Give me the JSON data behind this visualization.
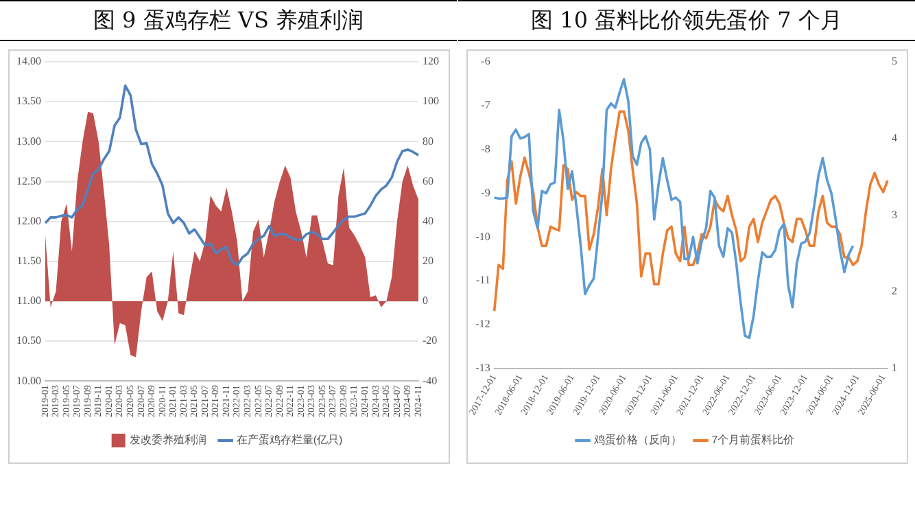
{
  "chart_data": [
    {
      "type": "line",
      "title": "图 9 蛋鸡存栏 VS 养殖利润",
      "categories": [
        "2019-01",
        null,
        "2019-03",
        null,
        "2019-05",
        null,
        "2019-07",
        null,
        "2019-09",
        null,
        "2019-11",
        null,
        "2020-01",
        null,
        "2020-03",
        null,
        "2020-05",
        null,
        "2020-07",
        null,
        "2020-09",
        null,
        "2020-11",
        null,
        "2021-01",
        null,
        "2021-03",
        null,
        "2021-05",
        null,
        "2021-07",
        null,
        "2021-09",
        null,
        "2021-11",
        null,
        "2022-01",
        null,
        "2022-03",
        null,
        "2022-05",
        null,
        "2022-07",
        null,
        "2022-09",
        null,
        "2022-11",
        null,
        "2023-01",
        null,
        "2023-03",
        null,
        "2023-05",
        null,
        "2023-07",
        null,
        "2023-09",
        null,
        "2023-11",
        null,
        "2024-01",
        null,
        "2024-03",
        null,
        "2024-05",
        null,
        "2024-07",
        null,
        "2024-09",
        null,
        "2024-11"
      ],
      "series": [
        {
          "name": "发改委养殖利润",
          "type": "area",
          "axis": "y2",
          "color": "#c0504d",
          "values": [
            33,
            -3,
            5,
            40,
            49,
            25,
            60,
            80,
            95,
            94,
            80,
            55,
            28,
            -22,
            -11,
            -12,
            -27,
            -28,
            -5,
            12,
            15,
            -5,
            -10,
            0,
            25,
            -6,
            -7,
            10,
            25,
            20,
            30,
            53,
            48,
            45,
            57,
            45,
            30,
            0,
            5,
            35,
            41,
            22,
            35,
            50,
            60,
            68,
            62,
            45,
            35,
            22,
            43,
            43,
            30,
            19,
            18,
            53,
            67,
            37,
            33,
            28,
            22,
            2,
            3,
            -3,
            0,
            12,
            40,
            60,
            68,
            58,
            51
          ]
        },
        {
          "name": "在产蛋鸡存栏量(亿只)",
          "type": "line",
          "color": "#4f81bd",
          "values": [
            11.98,
            12.05,
            12.05,
            12.07,
            12.08,
            12.05,
            12.15,
            12.2,
            12.4,
            12.6,
            12.65,
            12.78,
            12.88,
            13.2,
            13.3,
            13.7,
            13.58,
            13.15,
            12.97,
            12.98,
            12.72,
            12.6,
            12.45,
            12.1,
            11.98,
            12.05,
            11.98,
            11.85,
            11.9,
            11.8,
            11.7,
            11.72,
            11.6,
            11.65,
            11.68,
            11.5,
            11.45,
            11.55,
            11.6,
            11.72,
            11.78,
            11.82,
            11.94,
            11.82,
            11.84,
            11.84,
            11.8,
            11.77,
            11.77,
            11.84,
            11.87,
            11.84,
            11.78,
            11.78,
            11.86,
            11.95,
            12.02,
            12.06,
            12.06,
            12.08,
            12.1,
            12.2,
            12.32,
            12.4,
            12.45,
            12.55,
            12.75,
            12.88,
            12.9,
            12.87,
            12.83
          ]
        }
      ],
      "ylim": [
        10,
        14
      ],
      "yticks": [
        {
          "value": 10,
          "label": "10.00"
        },
        {
          "value": 10.5,
          "label": "10.50"
        },
        {
          "value": 11,
          "label": "11.00"
        },
        {
          "value": 11.5,
          "label": "11.50"
        },
        {
          "value": 12,
          "label": "12.00"
        },
        {
          "value": 12.5,
          "label": "12.50"
        },
        {
          "value": 13,
          "label": "13.00"
        },
        {
          "value": 13.5,
          "label": "13.50"
        },
        {
          "value": 14,
          "label": "14.00"
        }
      ],
      "y2lim": [
        -40,
        120
      ],
      "y2ticks": [
        -40,
        -20,
        0,
        20,
        40,
        60,
        80,
        100,
        120
      ],
      "grid": "y",
      "legend": "bottom",
      "marker": "none"
    },
    {
      "type": "line",
      "title": "图 10 蛋料比价领先蛋价 7 个月",
      "categories": [
        "2017-12-01",
        null,
        null,
        null,
        null,
        null,
        "2018-06-01",
        null,
        null,
        null,
        null,
        null,
        "2018-12-01",
        null,
        null,
        null,
        null,
        null,
        "2019-06-01",
        null,
        null,
        null,
        null,
        null,
        "2019-12-01",
        null,
        null,
        null,
        null,
        null,
        "2020-06-01",
        null,
        null,
        null,
        null,
        null,
        "2020-12-01",
        null,
        null,
        null,
        null,
        null,
        "2021-06-01",
        null,
        null,
        null,
        null,
        null,
        "2021-12-01",
        null,
        null,
        null,
        null,
        null,
        "2022-06-01",
        null,
        null,
        null,
        null,
        null,
        "2022-12-01",
        null,
        null,
        null,
        null,
        null,
        "2023-06-01",
        null,
        null,
        null,
        null,
        null,
        "2023-12-01",
        null,
        null,
        null,
        null,
        null,
        "2024-06-01",
        null,
        null,
        null,
        null,
        null,
        "2024-12-01",
        null,
        null,
        null,
        null,
        null,
        "2025-06-01",
        null
      ],
      "series": [
        {
          "name": "鸡蛋价格（反向）",
          "type": "line",
          "color": "#5b9bd5",
          "values": [
            -9.1,
            -9.12,
            -9.12,
            -9.1,
            -7.7,
            -7.55,
            -7.75,
            -7.72,
            -7.65,
            -9.4,
            -9.8,
            -8.95,
            -9.0,
            -8.8,
            -8.75,
            -7.1,
            -7.8,
            -8.9,
            -8.5,
            -9.3,
            -10.2,
            -11.3,
            -11.1,
            -10.95,
            -10.0,
            -9.0,
            -7.1,
            -6.95,
            -7.05,
            -6.7,
            -6.4,
            -6.9,
            -8.15,
            -8.35,
            -7.85,
            -7.7,
            -8.0,
            -9.6,
            -8.8,
            -8.2,
            -8.7,
            -9.15,
            -9.1,
            -9.2,
            -10.5,
            -10.5,
            -10.0,
            -10.6,
            -10.1,
            -9.8,
            -8.95,
            -9.1,
            -10.2,
            -10.45,
            -9.8,
            -9.9,
            -10.6,
            -11.5,
            -12.25,
            -12.3,
            -11.8,
            -11.0,
            -10.35,
            -10.45,
            -10.45,
            -10.3,
            -9.85,
            -9.7,
            -11.1,
            -11.6,
            -10.6,
            -10.15,
            -10.1,
            -9.9,
            -9.3,
            -8.6,
            -8.2,
            -8.7,
            -9.0,
            -9.6,
            -10.3,
            -10.8,
            -10.4,
            -10.2,
            null,
            null,
            null,
            null,
            null,
            null,
            null,
            null
          ]
        },
        {
          "name": "7个月前蛋料比价",
          "type": "line",
          "axis": "y2",
          "color": "#ed7d31",
          "values": [
            1.75,
            2.35,
            2.3,
            3.45,
            3.7,
            3.15,
            3.5,
            3.75,
            3.55,
            3.3,
            2.85,
            2.6,
            2.6,
            2.85,
            2.82,
            2.8,
            3.65,
            3.6,
            3.2,
            3.3,
            3.25,
            3.25,
            2.55,
            2.75,
            3.1,
            3.6,
            3.0,
            3.6,
            4.0,
            4.35,
            4.35,
            4.1,
            3.6,
            3.15,
            2.2,
            2.5,
            2.5,
            2.1,
            2.1,
            2.5,
            2.8,
            2.85,
            2.5,
            2.4,
            2.85,
            2.35,
            2.35,
            2.5,
            2.75,
            2.7,
            2.85,
            3.2,
            3.1,
            3.05,
            3.25,
            3.0,
            2.8,
            2.4,
            2.45,
            2.85,
            2.95,
            2.65,
            2.9,
            3.05,
            3.2,
            3.25,
            3.15,
            2.9,
            2.7,
            2.65,
            2.95,
            2.95,
            2.8,
            2.6,
            2.6,
            3.05,
            3.25,
            2.9,
            2.85,
            2.85,
            2.75,
            2.45,
            2.45,
            2.35,
            2.4,
            2.6,
            3.05,
            3.4,
            3.55,
            3.4,
            3.3,
            3.45
          ]
        }
      ],
      "ylim": [
        -13,
        -6
      ],
      "yticks": [
        -13,
        -12,
        -11,
        -10,
        -9,
        -8,
        -7,
        -6
      ],
      "y2lim": [
        1,
        5
      ],
      "y2ticks": [
        1,
        2,
        3,
        4,
        5
      ],
      "grid": false,
      "legend": "bottom",
      "marker": "none"
    }
  ]
}
